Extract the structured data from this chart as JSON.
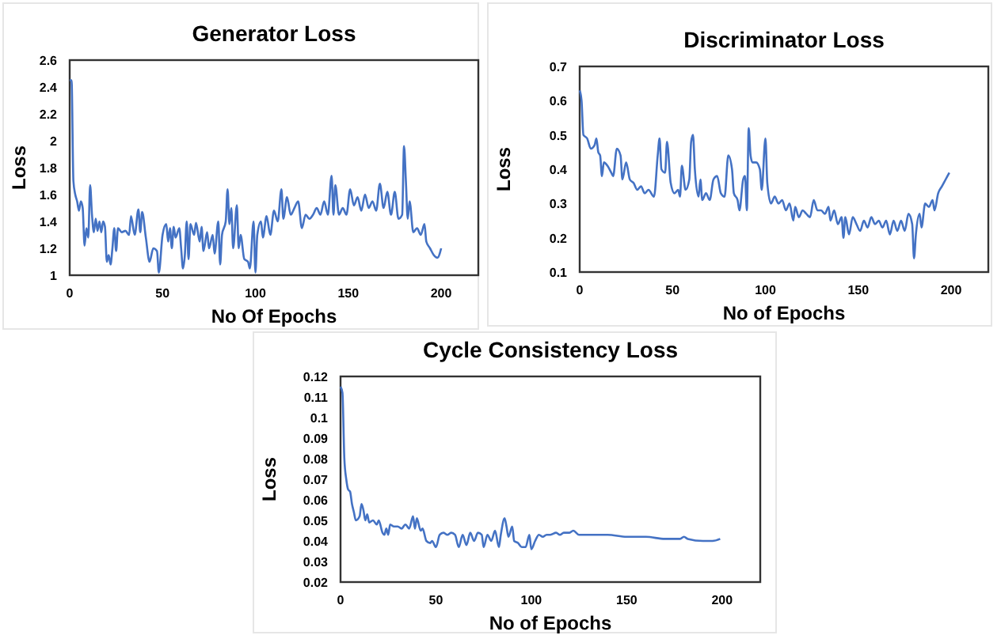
{
  "chart_data": [
    {
      "type": "line",
      "title": "Generator Loss",
      "xlabel": "No Of Epochs",
      "ylabel": "Loss",
      "xlim": [
        0,
        220
      ],
      "xticks": [
        0,
        50,
        100,
        150,
        200
      ],
      "ylim": [
        1,
        2.6
      ],
      "yticks": [
        1,
        1.2,
        1.4,
        1.6,
        1.8,
        2,
        2.2,
        2.4,
        2.6
      ],
      "grid": false,
      "series": [
        {
          "color": "#4472c4",
          "x": [
            0,
            1,
            2,
            3,
            4,
            5,
            6,
            7,
            8,
            9,
            10,
            11,
            12,
            13,
            14,
            15,
            16,
            17,
            18,
            19,
            20,
            21,
            22,
            23,
            24,
            25,
            26,
            28,
            30,
            32,
            33,
            35,
            37,
            38,
            39,
            41,
            43,
            45,
            47,
            48,
            50,
            52,
            53,
            54,
            55,
            56,
            57,
            59,
            60,
            61,
            62,
            63,
            64,
            65,
            67,
            68,
            70,
            71,
            72,
            74,
            75,
            77,
            78,
            80,
            81,
            82,
            84,
            85,
            86,
            87,
            88,
            90,
            91,
            92,
            94,
            96,
            97,
            99,
            100,
            101,
            103,
            104,
            106,
            108,
            110,
            112,
            114,
            115,
            117,
            119,
            121,
            123,
            125,
            127,
            129,
            131,
            133,
            135,
            137,
            139,
            141,
            142,
            143,
            145,
            147,
            149,
            151,
            153,
            155,
            157,
            159,
            161,
            163,
            165,
            167,
            169,
            171,
            173,
            175,
            177,
            179,
            180,
            181,
            182,
            183,
            185,
            187,
            189,
            191,
            192,
            194,
            196,
            198,
            200
          ],
          "values": [
            2.45,
            2.45,
            1.7,
            1.6,
            1.55,
            1.48,
            1.55,
            1.5,
            1.22,
            1.35,
            1.28,
            1.67,
            1.45,
            1.32,
            1.42,
            1.33,
            1.4,
            1.32,
            1.4,
            1.36,
            1.1,
            1.15,
            1.08,
            1.2,
            1.35,
            1.18,
            1.35,
            1.32,
            1.33,
            1.3,
            1.44,
            1.3,
            1.49,
            1.32,
            1.47,
            1.28,
            1.1,
            1.2,
            1.18,
            1.02,
            1.3,
            1.38,
            1.25,
            1.35,
            1.2,
            1.36,
            1.28,
            1.35,
            1.2,
            1.05,
            1.15,
            1.4,
            1.12,
            1.38,
            1.3,
            1.39,
            1.25,
            1.36,
            1.18,
            1.32,
            1.2,
            1.3,
            1.16,
            1.4,
            1.08,
            1.3,
            1.4,
            1.64,
            1.38,
            1.5,
            1.2,
            1.52,
            1.2,
            1.3,
            1.12,
            1.1,
            1.05,
            1.4,
            1.02,
            1.3,
            1.4,
            1.28,
            1.44,
            1.3,
            1.48,
            1.4,
            1.64,
            1.42,
            1.58,
            1.45,
            1.5,
            1.55,
            1.35,
            1.45,
            1.42,
            1.45,
            1.5,
            1.45,
            1.55,
            1.45,
            1.74,
            1.45,
            1.67,
            1.45,
            1.5,
            1.45,
            1.64,
            1.52,
            1.58,
            1.48,
            1.6,
            1.5,
            1.55,
            1.48,
            1.68,
            1.5,
            1.62,
            1.45,
            1.62,
            1.42,
            1.45,
            1.96,
            1.7,
            1.42,
            1.55,
            1.32,
            1.35,
            1.3,
            1.38,
            1.25,
            1.2,
            1.15,
            1.13,
            1.2
          ]
        }
      ]
    },
    {
      "type": "line",
      "title": "Discriminator Loss",
      "xlabel": "No of Epochs",
      "ylabel": "Loss",
      "xlim": [
        0,
        220
      ],
      "xticks": [
        0,
        50,
        100,
        150,
        200
      ],
      "ylim": [
        0.1,
        0.7
      ],
      "yticks": [
        0.1,
        0.2,
        0.3,
        0.4,
        0.5,
        0.6,
        0.7
      ],
      "grid": false,
      "series": [
        {
          "color": "#4472c4",
          "x": [
            0,
            1,
            2,
            4,
            6,
            8,
            9,
            10,
            11,
            12,
            13,
            15,
            17,
            18,
            20,
            22,
            23,
            25,
            27,
            29,
            31,
            33,
            35,
            37,
            40,
            42,
            43,
            44,
            46,
            47,
            49,
            51,
            53,
            54,
            55,
            57,
            59,
            60,
            61,
            62,
            64,
            65,
            66,
            68,
            70,
            72,
            74,
            76,
            78,
            80,
            82,
            83,
            85,
            86,
            88,
            89,
            90,
            91,
            92,
            93,
            95,
            97,
            98,
            100,
            101,
            103,
            105,
            107,
            109,
            111,
            113,
            115,
            116,
            118,
            120,
            122,
            124,
            126,
            128,
            130,
            132,
            134,
            135,
            137,
            139,
            141,
            142,
            143,
            145,
            147,
            149,
            151,
            153,
            155,
            157,
            159,
            161,
            163,
            165,
            167,
            169,
            171,
            173,
            175,
            177,
            179,
            180,
            181,
            183,
            184,
            186,
            188,
            190,
            191,
            193,
            195,
            197,
            199
          ],
          "values": [
            0.63,
            0.6,
            0.5,
            0.49,
            0.46,
            0.47,
            0.49,
            0.45,
            0.44,
            0.38,
            0.42,
            0.41,
            0.39,
            0.38,
            0.46,
            0.44,
            0.37,
            0.42,
            0.37,
            0.36,
            0.34,
            0.35,
            0.33,
            0.34,
            0.32,
            0.44,
            0.49,
            0.4,
            0.39,
            0.48,
            0.36,
            0.33,
            0.34,
            0.32,
            0.41,
            0.34,
            0.37,
            0.48,
            0.5,
            0.4,
            0.32,
            0.37,
            0.31,
            0.33,
            0.31,
            0.37,
            0.38,
            0.33,
            0.32,
            0.44,
            0.4,
            0.33,
            0.31,
            0.28,
            0.37,
            0.38,
            0.28,
            0.52,
            0.44,
            0.42,
            0.42,
            0.4,
            0.34,
            0.49,
            0.36,
            0.3,
            0.32,
            0.3,
            0.31,
            0.28,
            0.3,
            0.25,
            0.29,
            0.26,
            0.28,
            0.27,
            0.26,
            0.31,
            0.28,
            0.28,
            0.27,
            0.29,
            0.25,
            0.28,
            0.24,
            0.26,
            0.2,
            0.26,
            0.21,
            0.26,
            0.24,
            0.22,
            0.25,
            0.23,
            0.26,
            0.24,
            0.25,
            0.23,
            0.25,
            0.21,
            0.25,
            0.22,
            0.25,
            0.22,
            0.27,
            0.24,
            0.14,
            0.21,
            0.27,
            0.23,
            0.3,
            0.29,
            0.31,
            0.28,
            0.33,
            0.35,
            0.37,
            0.39
          ]
        }
      ]
    },
    {
      "type": "line",
      "title": "Cycle Consistency Loss",
      "xlabel": "No of Epochs",
      "ylabel": "Loss",
      "xlim": [
        0,
        220
      ],
      "xticks": [
        0,
        50,
        100,
        150,
        200
      ],
      "ylim": [
        0.02,
        0.12
      ],
      "yticks": [
        0.02,
        0.03,
        0.04,
        0.05,
        0.06,
        0.07,
        0.08,
        0.09,
        0.1,
        0.11,
        0.12
      ],
      "grid": false,
      "series": [
        {
          "color": "#4472c4",
          "x": [
            0,
            1,
            2,
            3,
            4,
            5,
            6,
            7,
            8,
            10,
            11,
            12,
            13,
            14,
            15,
            17,
            19,
            20,
            22,
            23,
            24,
            25,
            26,
            28,
            30,
            32,
            34,
            36,
            38,
            39,
            40,
            42,
            43,
            45,
            47,
            48,
            50,
            52,
            54,
            56,
            58,
            60,
            62,
            64,
            66,
            68,
            70,
            72,
            74,
            75,
            77,
            79,
            81,
            83,
            84,
            86,
            87,
            88,
            90,
            91,
            93,
            95,
            97,
            99,
            100,
            102,
            104,
            106,
            108,
            110,
            113,
            115,
            117,
            120,
            122,
            125,
            130,
            140,
            150,
            160,
            170,
            178,
            180,
            182,
            190,
            195,
            199
          ],
          "values": [
            0.115,
            0.112,
            0.08,
            0.07,
            0.065,
            0.064,
            0.058,
            0.054,
            0.05,
            0.052,
            0.058,
            0.055,
            0.05,
            0.053,
            0.049,
            0.05,
            0.048,
            0.05,
            0.044,
            0.043,
            0.046,
            0.043,
            0.048,
            0.047,
            0.047,
            0.046,
            0.048,
            0.046,
            0.052,
            0.046,
            0.051,
            0.045,
            0.046,
            0.04,
            0.039,
            0.04,
            0.037,
            0.043,
            0.044,
            0.043,
            0.044,
            0.043,
            0.037,
            0.043,
            0.038,
            0.044,
            0.04,
            0.044,
            0.043,
            0.037,
            0.043,
            0.04,
            0.045,
            0.037,
            0.043,
            0.051,
            0.047,
            0.042,
            0.047,
            0.04,
            0.039,
            0.037,
            0.037,
            0.043,
            0.036,
            0.04,
            0.043,
            0.042,
            0.043,
            0.043,
            0.044,
            0.043,
            0.044,
            0.044,
            0.045,
            0.043,
            0.043,
            0.043,
            0.042,
            0.042,
            0.041,
            0.041,
            0.042,
            0.041,
            0.04,
            0.04,
            0.041
          ]
        }
      ]
    }
  ]
}
